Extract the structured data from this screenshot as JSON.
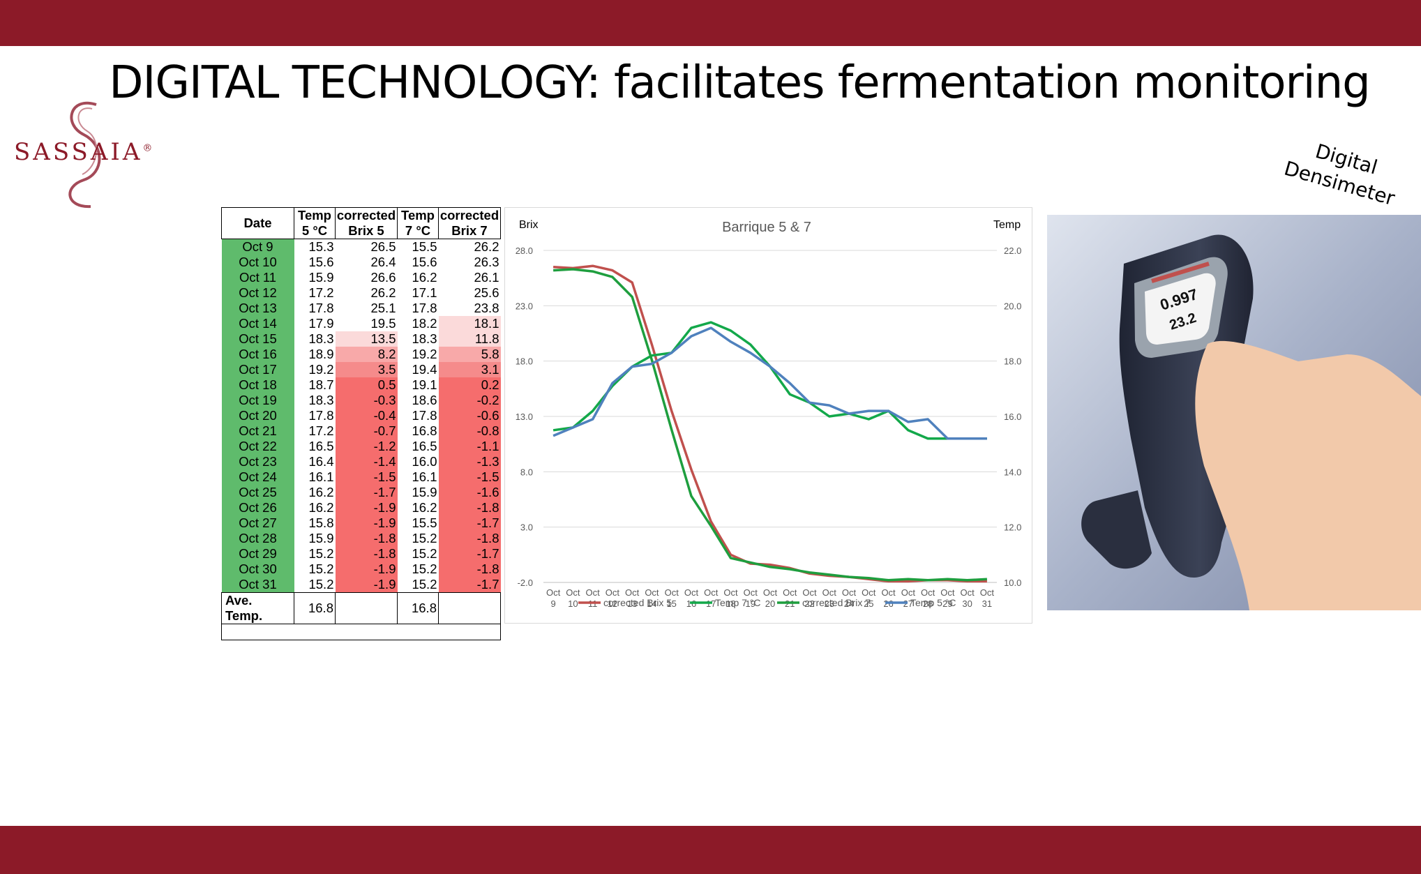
{
  "slide": {
    "title": "DIGITAL TECHNOLOGY: facilitates fermentation monitoring",
    "logo_text": "SASSAIA",
    "logo_mark": "®",
    "device_caption_line1": "Digital",
    "device_caption_line2": "Densimeter",
    "band_color": "#8c1a28"
  },
  "device": {
    "display_value1": "0.997",
    "display_value2": "23.2"
  },
  "table": {
    "headers": [
      "Date",
      "Temp 5 °C",
      "corrected Brix 5",
      "Temp 7 °C",
      "corrected Brix 7"
    ],
    "rows": [
      [
        "Oct 9",
        "15.3",
        "26.5",
        "15.5",
        "26.2"
      ],
      [
        "Oct 10",
        "15.6",
        "26.4",
        "15.6",
        "26.3"
      ],
      [
        "Oct 11",
        "15.9",
        "26.6",
        "16.2",
        "26.1"
      ],
      [
        "Oct 12",
        "17.2",
        "26.2",
        "17.1",
        "25.6"
      ],
      [
        "Oct 13",
        "17.8",
        "25.1",
        "17.8",
        "23.8"
      ],
      [
        "Oct 14",
        "17.9",
        "19.5",
        "18.2",
        "18.1"
      ],
      [
        "Oct 15",
        "18.3",
        "13.5",
        "18.3",
        "11.8"
      ],
      [
        "Oct 16",
        "18.9",
        "8.2",
        "19.2",
        "5.8"
      ],
      [
        "Oct 17",
        "19.2",
        "3.5",
        "19.4",
        "3.1"
      ],
      [
        "Oct 18",
        "18.7",
        "0.5",
        "19.1",
        "0.2"
      ],
      [
        "Oct 19",
        "18.3",
        "-0.3",
        "18.6",
        "-0.2"
      ],
      [
        "Oct 20",
        "17.8",
        "-0.4",
        "17.8",
        "-0.6"
      ],
      [
        "Oct 21",
        "17.2",
        "-0.7",
        "16.8",
        "-0.8"
      ],
      [
        "Oct 22",
        "16.5",
        "-1.2",
        "16.5",
        "-1.1"
      ],
      [
        "Oct 23",
        "16.4",
        "-1.4",
        "16.0",
        "-1.3"
      ],
      [
        "Oct 24",
        "16.1",
        "-1.5",
        "16.1",
        "-1.5"
      ],
      [
        "Oct 25",
        "16.2",
        "-1.7",
        "15.9",
        "-1.6"
      ],
      [
        "Oct 26",
        "16.2",
        "-1.9",
        "16.2",
        "-1.8"
      ],
      [
        "Oct 27",
        "15.8",
        "-1.9",
        "15.5",
        "-1.7"
      ],
      [
        "Oct 28",
        "15.9",
        "-1.8",
        "15.2",
        "-1.8"
      ],
      [
        "Oct 29",
        "15.2",
        "-1.8",
        "15.2",
        "-1.7"
      ],
      [
        "Oct 30",
        "15.2",
        "-1.9",
        "15.2",
        "-1.8"
      ],
      [
        "Oct 31",
        "15.2",
        "-1.9",
        "15.2",
        "-1.7"
      ]
    ],
    "average_label": "Ave. Temp.",
    "average_temp5": "16.8",
    "average_temp7": "16.8",
    "date_fill": "#5fbb6c"
  },
  "chart_data": {
    "type": "line",
    "title": "Barrique 5 & 7",
    "ylabel": "Brix",
    "y2label": "Temp",
    "ylim": [
      -2.0,
      28.0
    ],
    "y2lim": [
      10.0,
      22.0
    ],
    "yticks": [
      "28.0",
      "23.0",
      "18.0",
      "13.0",
      "8.0",
      "3.0",
      "-2.0"
    ],
    "y2ticks": [
      "22.0",
      "20.0",
      "18.0",
      "16.0",
      "14.0",
      "12.0",
      "10.0"
    ],
    "categories": [
      "Oct 9",
      "Oct 10",
      "Oct 11",
      "Oct 12",
      "Oct 13",
      "Oct 14",
      "Oct 15",
      "Oct 16",
      "Oct 17",
      "Oct 18",
      "Oct 19",
      "Oct 20",
      "Oct 21",
      "Oct 22",
      "Oct 23",
      "Oct 24",
      "Oct 25",
      "Oct 26",
      "Oct 27",
      "Oct 28",
      "Oct 29",
      "Oct 30",
      "Oct 31"
    ],
    "series": [
      {
        "name": "corrected Brix 5",
        "axis": "left",
        "color": "#c0504d",
        "values": [
          26.5,
          26.4,
          26.6,
          26.2,
          25.1,
          19.5,
          13.5,
          8.2,
          3.5,
          0.5,
          -0.3,
          -0.4,
          -0.7,
          -1.2,
          -1.4,
          -1.5,
          -1.7,
          -1.9,
          -1.9,
          -1.8,
          -1.8,
          -1.9,
          -1.9
        ]
      },
      {
        "name": "Temp 7 °C",
        "axis": "right",
        "color": "#13a84a",
        "values": [
          15.5,
          15.6,
          16.2,
          17.1,
          17.8,
          18.2,
          18.3,
          19.2,
          19.4,
          19.1,
          18.6,
          17.8,
          16.8,
          16.5,
          16.0,
          16.1,
          15.9,
          16.2,
          15.5,
          15.2,
          15.2,
          15.2,
          15.2
        ]
      },
      {
        "name": "corrected Brix 7",
        "axis": "left",
        "color": "#1e9e3e",
        "values": [
          26.2,
          26.3,
          26.1,
          25.6,
          23.8,
          18.1,
          11.8,
          5.8,
          3.1,
          0.2,
          -0.2,
          -0.6,
          -0.8,
          -1.1,
          -1.3,
          -1.5,
          -1.6,
          -1.8,
          -1.7,
          -1.8,
          -1.7,
          -1.8,
          -1.7
        ]
      },
      {
        "name": "Temp 5 °C",
        "axis": "right",
        "color": "#4f81bd",
        "values": [
          15.3,
          15.6,
          15.9,
          17.2,
          17.8,
          17.9,
          18.3,
          18.9,
          19.2,
          18.7,
          18.3,
          17.8,
          17.2,
          16.5,
          16.4,
          16.1,
          16.2,
          16.2,
          15.8,
          15.9,
          15.2,
          15.2,
          15.2
        ]
      }
    ],
    "legend_position": "bottom",
    "grid": true
  }
}
